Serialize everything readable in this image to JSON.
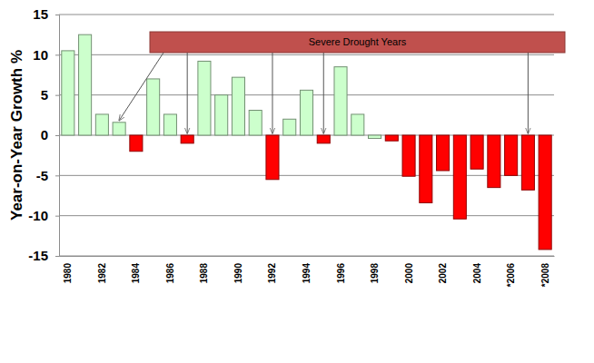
{
  "chart_data": {
    "type": "bar",
    "y_label": "Year-on-Year Growth %",
    "categories": [
      "1980",
      null,
      "1982",
      null,
      "1984",
      null,
      "1986",
      null,
      "1988",
      null,
      "1990",
      null,
      "1992",
      null,
      "1994",
      null,
      "1996",
      null,
      "1998",
      null,
      "2000",
      null,
      "2002",
      null,
      "2004",
      null,
      "*2006",
      null,
      "*2008"
    ],
    "values": [
      10.5,
      12.5,
      2.6,
      1.6,
      -2.0,
      7.0,
      2.6,
      -1.0,
      9.2,
      5.0,
      7.2,
      3.1,
      -5.5,
      2.0,
      5.6,
      -1.0,
      8.5,
      2.6,
      -0.4,
      -0.7,
      -5.1,
      -8.4,
      -4.4,
      -10.4,
      -4.2,
      -6.5,
      -5.0,
      -6.8,
      -14.2
    ],
    "colors": [
      "#ccffcc",
      "#ccffcc",
      "#ccffcc",
      "#ccffcc",
      "#ff0000",
      "#ccffcc",
      "#ccffcc",
      "#ff0000",
      "#ccffcc",
      "#ccffcc",
      "#ccffcc",
      "#ccffcc",
      "#ff0000",
      "#ccffcc",
      "#ccffcc",
      "#ff0000",
      "#ccffcc",
      "#ccffcc",
      "#ccffcc",
      "#ff0000",
      "#ff0000",
      "#ff0000",
      "#ff0000",
      "#ff0000",
      "#ff0000",
      "#ff0000",
      "#ff0000",
      "#ff0000",
      "#ff0000"
    ],
    "ylim": [
      -15,
      15
    ],
    "yticks": [
      -15,
      -10,
      -5,
      0,
      5,
      10,
      15
    ],
    "grid": true,
    "annotations": [
      {
        "text": "Severe Drought Years",
        "arrow_to": [
          3,
          7,
          12,
          15,
          27
        ]
      }
    ]
  }
}
